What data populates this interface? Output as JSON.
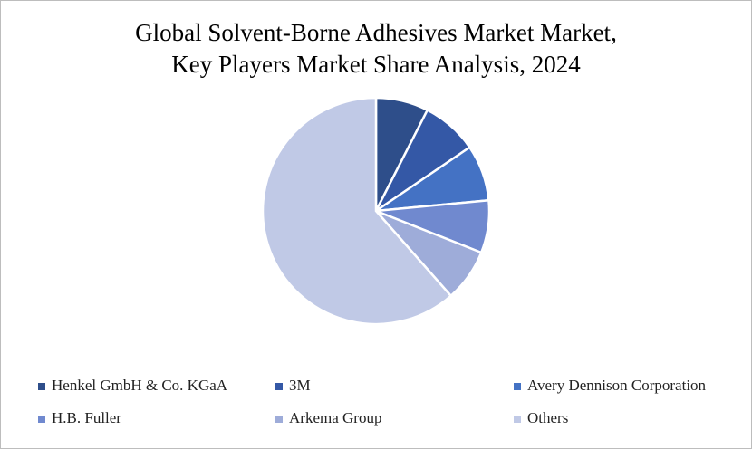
{
  "chart_data": {
    "type": "pie",
    "title": [
      "Global Solvent-Borne Adhesives Market Market,",
      "Key Players Market Share Analysis, 2024"
    ],
    "categories": [
      "Henkel GmbH & Co. KGaA",
      "3M",
      "Avery Dennison Corporation",
      "H.B. Fuller",
      "Arkema Group",
      "Others"
    ],
    "values": [
      7.5,
      8,
      8,
      7.5,
      7.5,
      61.5
    ],
    "colors": [
      "#2e4e8a",
      "#3458a6",
      "#4472c4",
      "#7089cf",
      "#9eacd9",
      "#c0c9e6"
    ],
    "legend": "bottom"
  }
}
